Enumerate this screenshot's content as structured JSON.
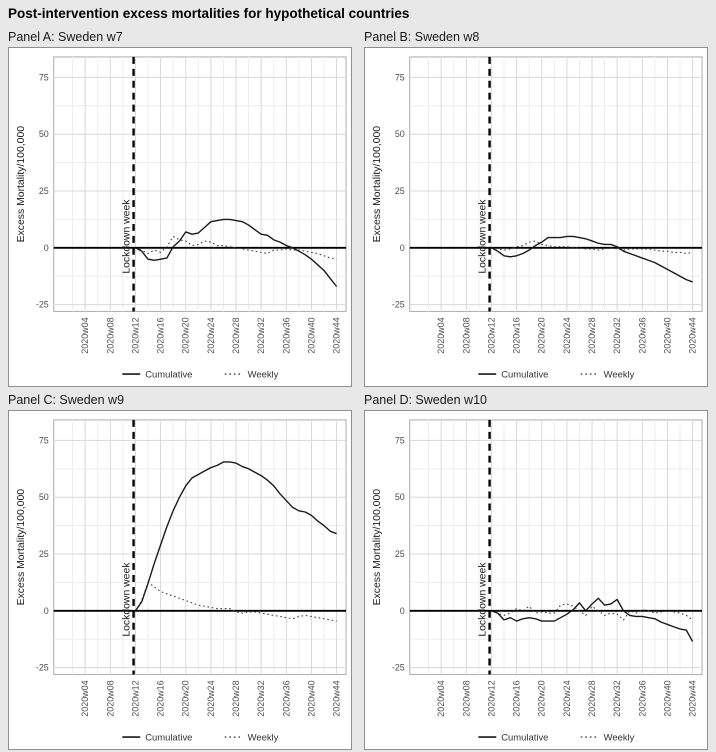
{
  "title": "Post-intervention excess mortalities for hypothetical countries",
  "axes": {
    "y_title": "Excess Mortality/100,000",
    "y_ticks": [
      -25,
      0,
      25,
      50,
      75
    ],
    "y_minor": [
      -12.5,
      12.5,
      37.5,
      62.5
    ],
    "ylim": [
      -28,
      84
    ],
    "x_tick_weeks": [
      4,
      8,
      12,
      16,
      20,
      24,
      28,
      32,
      36,
      40,
      44
    ],
    "x_tick_labels": [
      "2020w04",
      "2020w08",
      "2020w12",
      "2020w16",
      "2020w20",
      "2020w24",
      "2020w28",
      "2020w32",
      "2020w36",
      "2020w40",
      "2020w44"
    ],
    "x_minor_weeks": [
      2,
      6,
      10,
      14,
      18,
      22,
      26,
      30,
      34,
      38,
      42
    ],
    "xlim_weeks": [
      -1,
      45.5
    ],
    "grid": true
  },
  "lockdown": {
    "week": 11.7,
    "label": "Lockdown week",
    "line_style": "dashed"
  },
  "zero_line": {
    "y": 0,
    "style": "solid"
  },
  "legend": {
    "position": "bottom",
    "entries": [
      {
        "label": "Cumulative",
        "style": "solid"
      },
      {
        "label": "Weekly",
        "style": "dotted"
      }
    ]
  },
  "colors": {
    "page_bg": "#e8e8e8",
    "panel_bg": "#ffffff",
    "panel_border": "#8f8f8f",
    "plot_border": "#ababab",
    "grid_major": "#d8d8d8",
    "grid_minor": "#ededed",
    "cumulative_line": "#1a1a1a",
    "weekly_line": "#3f3f3f",
    "zero_line": "#000000",
    "lockdown_line": "#000000",
    "tick_text": "#4d4d4d",
    "label_text": "#1a1a1a"
  },
  "chart_data": [
    {
      "type": "line",
      "title": "Panel A: Sweden w7",
      "ylabel": "Excess Mortality/100,000",
      "xlabel": "",
      "ylim": [
        -28,
        84
      ],
      "y_ticks": [
        -25,
        0,
        25,
        50,
        75
      ],
      "x_tick_labels": [
        "2020w04",
        "2020w08",
        "2020w12",
        "2020w16",
        "2020w20",
        "2020w24",
        "2020w28",
        "2020w32",
        "2020w36",
        "2020w40",
        "2020w44"
      ],
      "vline_label": "Lockdown week",
      "x_weeks": [
        12,
        13,
        14,
        15,
        16,
        17,
        18,
        19,
        20,
        21,
        22,
        23,
        24,
        25,
        26,
        27,
        28,
        29,
        30,
        31,
        32,
        33,
        34,
        35,
        36,
        37,
        38,
        39,
        40,
        41,
        42,
        43,
        44
      ],
      "series": [
        {
          "name": "Cumulative",
          "style": "solid",
          "values": [
            0,
            -1.5,
            -5,
            -5.5,
            -5,
            -4.5,
            0.5,
            3,
            7,
            6,
            6.5,
            9,
            11.5,
            12,
            12.5,
            12.5,
            12,
            11.5,
            10,
            8,
            6,
            5.5,
            3.5,
            2.5,
            1,
            0,
            -1.5,
            -3,
            -5,
            -7.5,
            -10,
            -13.5,
            -17
          ]
        },
        {
          "name": "Weekly",
          "style": "dotted",
          "values": [
            0,
            -1,
            -2.5,
            -1,
            -2,
            0.5,
            5,
            3.5,
            3,
            1,
            1.5,
            3,
            2.5,
            1,
            1,
            0.5,
            0,
            -0.5,
            -1,
            -1.5,
            -2,
            -2.5,
            -1,
            -1,
            -0.5,
            -1,
            -1,
            -1.5,
            -2,
            -2.5,
            -3.5,
            -4.5,
            -5
          ]
        }
      ]
    },
    {
      "type": "line",
      "title": "Panel B: Sweden w8",
      "ylabel": "Excess Mortality/100,000",
      "xlabel": "",
      "ylim": [
        -28,
        84
      ],
      "y_ticks": [
        -25,
        0,
        25,
        50,
        75
      ],
      "x_tick_labels": [
        "2020w04",
        "2020w08",
        "2020w12",
        "2020w16",
        "2020w20",
        "2020w24",
        "2020w28",
        "2020w32",
        "2020w36",
        "2020w40",
        "2020w44"
      ],
      "vline_label": "Lockdown week",
      "x_weeks": [
        12,
        13,
        14,
        15,
        16,
        17,
        18,
        19,
        20,
        21,
        22,
        23,
        24,
        25,
        26,
        27,
        28,
        29,
        30,
        31,
        32,
        33,
        34,
        35,
        36,
        37,
        38,
        39,
        40,
        41,
        42,
        43,
        44
      ],
      "series": [
        {
          "name": "Cumulative",
          "style": "solid",
          "values": [
            0,
            -1.5,
            -3.5,
            -4,
            -3.5,
            -2.5,
            -1,
            1,
            2.5,
            4.5,
            4.5,
            4.5,
            5,
            5,
            4.5,
            4,
            3,
            2,
            1.5,
            1.5,
            0.5,
            -1.5,
            -2.5,
            -3.5,
            -4.5,
            -5.5,
            -6.5,
            -8,
            -9.5,
            -11,
            -12.5,
            -14,
            -15
          ]
        },
        {
          "name": "Weekly",
          "style": "dotted",
          "values": [
            0,
            -0.5,
            -1,
            -0.5,
            0.5,
            1,
            2.5,
            3,
            1.5,
            1,
            0.5,
            0.5,
            0.5,
            0,
            0,
            -0.5,
            -0.5,
            -1,
            -0.5,
            0,
            -0.5,
            -1,
            -0.5,
            -0.5,
            -0.5,
            -0.5,
            -1,
            -1.5,
            -1.5,
            -2,
            -2,
            -2.5,
            -2
          ]
        }
      ]
    },
    {
      "type": "line",
      "title": "Panel C: Sweden w9",
      "ylabel": "Excess Mortality/100,000",
      "xlabel": "",
      "ylim": [
        -28,
        84
      ],
      "y_ticks": [
        -25,
        0,
        25,
        50,
        75
      ],
      "x_tick_labels": [
        "2020w04",
        "2020w08",
        "2020w12",
        "2020w16",
        "2020w20",
        "2020w24",
        "2020w28",
        "2020w32",
        "2020w36",
        "2020w40",
        "2020w44"
      ],
      "vline_label": "Lockdown week",
      "x_weeks": [
        12,
        13,
        14,
        15,
        16,
        17,
        18,
        19,
        20,
        21,
        22,
        23,
        24,
        25,
        26,
        27,
        28,
        29,
        30,
        31,
        32,
        33,
        34,
        35,
        36,
        37,
        38,
        39,
        40,
        41,
        42,
        43,
        44
      ],
      "series": [
        {
          "name": "Cumulative",
          "style": "solid",
          "values": [
            0,
            4,
            12,
            21,
            29,
            37,
            44,
            50,
            55,
            58.5,
            60,
            61.5,
            63,
            64,
            65.5,
            65.5,
            65,
            63.5,
            62.5,
            61,
            59.5,
            57.5,
            55,
            51.5,
            48.5,
            45.5,
            44,
            43.5,
            42,
            39.5,
            37.5,
            35,
            34
          ]
        },
        {
          "name": "Weekly",
          "style": "dotted",
          "values": [
            0,
            4.5,
            12.5,
            10.5,
            8.5,
            7.5,
            6.5,
            5.5,
            4.5,
            3.5,
            2.5,
            2,
            1.5,
            1,
            1,
            1,
            -0.5,
            -1,
            -0.5,
            -0.5,
            -1,
            -1.5,
            -2,
            -2.5,
            -3,
            -3.5,
            -2.5,
            -2,
            -2.5,
            -3,
            -3.5,
            -4,
            -4.5
          ]
        }
      ]
    },
    {
      "type": "line",
      "title": "Panel D: Sweden w10",
      "ylabel": "Excess Mortality/100,000",
      "xlabel": "",
      "ylim": [
        -28,
        84
      ],
      "y_ticks": [
        -25,
        0,
        25,
        50,
        75
      ],
      "x_tick_labels": [
        "2020w04",
        "2020w08",
        "2020w12",
        "2020w16",
        "2020w20",
        "2020w24",
        "2020w28",
        "2020w32",
        "2020w36",
        "2020w40",
        "2020w44"
      ],
      "vline_label": "Lockdown week",
      "x_weeks": [
        12,
        13,
        14,
        15,
        16,
        17,
        18,
        19,
        20,
        21,
        22,
        23,
        24,
        25,
        26,
        27,
        28,
        29,
        30,
        31,
        32,
        33,
        34,
        35,
        36,
        37,
        38,
        39,
        40,
        41,
        42,
        43,
        44
      ],
      "series": [
        {
          "name": "Cumulative",
          "style": "solid",
          "values": [
            0,
            -1,
            -4,
            -3,
            -4.5,
            -3.5,
            -3,
            -3.5,
            -4.5,
            -4.5,
            -4.5,
            -3,
            -1.5,
            0.5,
            3.5,
            0,
            3,
            5.5,
            2.5,
            3,
            5,
            0,
            -2,
            -2.5,
            -2.5,
            -3,
            -3.5,
            -5,
            -6,
            -7,
            -8,
            -8.5,
            -13.5
          ]
        },
        {
          "name": "Weekly",
          "style": "dotted",
          "values": [
            0,
            -1,
            -2,
            -1,
            1,
            0,
            2,
            -1,
            -0.5,
            -1,
            -1,
            2.5,
            3,
            2,
            0,
            -2,
            2,
            0,
            -2,
            -1,
            -1.5,
            -4,
            0,
            -1,
            0.5,
            0,
            -1,
            -0.5,
            0,
            -0.5,
            -1,
            -2,
            -4
          ]
        }
      ]
    }
  ]
}
